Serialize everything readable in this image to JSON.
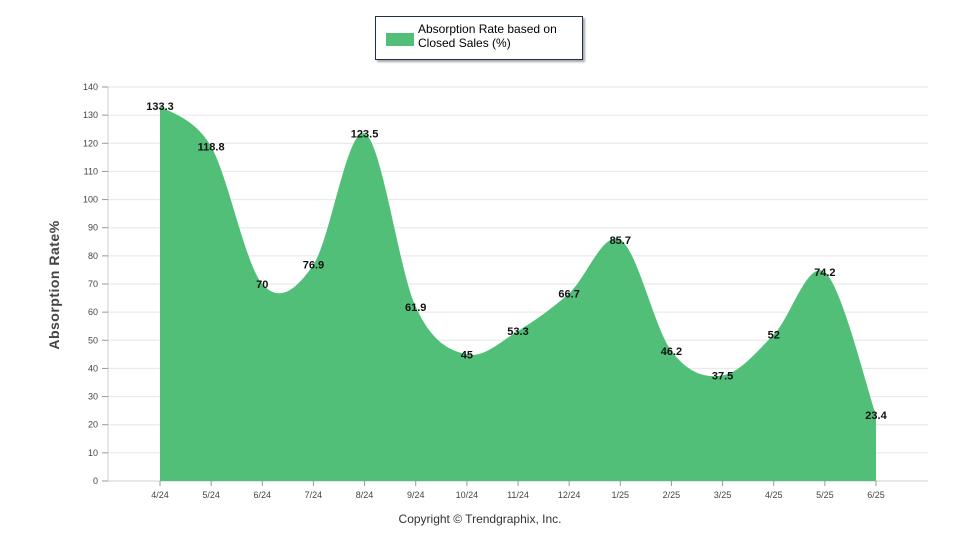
{
  "chart_data": {
    "type": "area",
    "categories": [
      "4/24",
      "5/24",
      "6/24",
      "7/24",
      "8/24",
      "9/24",
      "10/24",
      "11/24",
      "12/24",
      "1/25",
      "2/25",
      "3/25",
      "4/25",
      "5/25",
      "6/25"
    ],
    "series": [
      {
        "name": "Absorption Rate based on Closed Sales (%)",
        "values": [
          133.3,
          118.8,
          70,
          76.9,
          123.5,
          61.9,
          45,
          53.3,
          66.7,
          85.7,
          46.2,
          37.5,
          52,
          74.2,
          23.4
        ],
        "color": "#52bf79"
      }
    ],
    "data_labels": [
      "133.3",
      "118.8",
      "70",
      "76.9",
      "123.5",
      "61.9",
      "45",
      "53.3",
      "66.7",
      "85.7",
      "46.2",
      "37.5",
      "52",
      "74.2",
      "23.4"
    ],
    "ylabel": "Absorption Rate%",
    "xlabel": "",
    "ylim": [
      0,
      140
    ],
    "yticks": [
      0,
      10,
      20,
      30,
      40,
      50,
      60,
      70,
      80,
      90,
      100,
      110,
      120,
      130,
      140
    ],
    "grid": true,
    "legend_position": "top-center"
  },
  "legend": {
    "label": "Absorption Rate based on Closed Sales (%)"
  },
  "footer": {
    "copyright": "Copyright © Trendgraphix, Inc."
  }
}
